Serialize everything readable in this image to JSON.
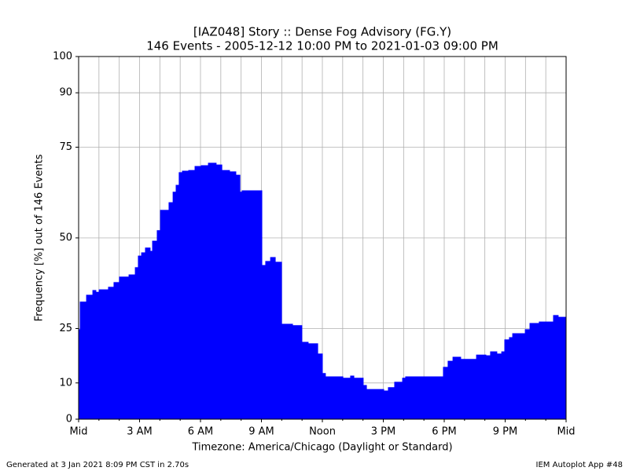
{
  "chart_data": {
    "type": "area",
    "title": "[IAZ048] Story :: Dense Fog Advisory (FG.Y)",
    "subtitle": "146 Events - 2005-12-12 10:00 PM to 2021-01-03 09:00 PM",
    "xlabel": "Timezone: America/Chicago (Daylight or Standard)",
    "ylabel": "Frequency [%] out of 146 Events",
    "footer_left": "Generated at 3 Jan 2021 8:09 PM CST in 2.70s",
    "footer_right": "IEM Autoplot App #48",
    "step": true,
    "color": "#0000ff",
    "grid": true,
    "x": [
      0,
      0.08,
      0.39,
      0.7,
      0.85,
      1.01,
      1.47,
      1.74,
      2.01,
      2.48,
      2.79,
      2.94,
      3.1,
      3.29,
      3.52,
      3.64,
      3.87,
      4.03,
      4.45,
      4.65,
      4.8,
      4.95,
      5.11,
      5.42,
      5.73,
      6.04,
      6.39,
      6.77,
      7.05,
      7.43,
      7.74,
      7.94,
      8.05,
      9.02,
      9.21,
      9.45,
      9.68,
      9.99,
      10.53,
      10.99,
      11.3,
      11.77,
      12,
      12.15,
      13.01,
      13.39,
      13.55,
      14.01,
      14.17,
      15.02,
      15.25,
      15.56,
      15.95,
      16.1,
      17.96,
      18.19,
      18.43,
      18.81,
      19.59,
      20.05,
      20.28,
      20.59,
      20.83,
      20.98,
      21.21,
      21.37,
      21.99,
      22.22,
      22.68,
      23.38,
      23.61,
      24
    ],
    "values": [
      24.7,
      32.3,
      34.2,
      35.5,
      35,
      35.7,
      36.4,
      37.7,
      39.2,
      39.8,
      41.8,
      45,
      45.9,
      47.2,
      46.3,
      49.1,
      52,
      57.6,
      59.7,
      62.6,
      64.5,
      68,
      68.4,
      68.6,
      69.7,
      69.9,
      70.6,
      70.1,
      68.6,
      68.2,
      67.3,
      62.6,
      63,
      42.4,
      43.5,
      44.6,
      43.3,
      26.2,
      25.8,
      21.2,
      20.8,
      18,
      12.6,
      11.7,
      11.3,
      11.9,
      11.3,
      9.3,
      8.2,
      7.8,
      8.7,
      10.2,
      11.3,
      11.7,
      14.3,
      16,
      17.1,
      16.5,
      17.7,
      17.5,
      18.6,
      18,
      18.6,
      21.9,
      22.5,
      23.6,
      24.7,
      26.4,
      26.8,
      28.6,
      28.1,
      28.1
    ],
    "xlim": [
      0,
      24
    ],
    "xticks": [
      {
        "value": 0,
        "label": "Mid"
      },
      {
        "value": 3,
        "label": "3 AM"
      },
      {
        "value": 6,
        "label": "6 AM"
      },
      {
        "value": 9,
        "label": "9 AM"
      },
      {
        "value": 12,
        "label": "Noon"
      },
      {
        "value": 15,
        "label": "3 PM"
      },
      {
        "value": 18,
        "label": "6 PM"
      },
      {
        "value": 21,
        "label": "9 PM"
      },
      {
        "value": 24,
        "label": "Mid"
      }
    ],
    "xminorticks": [
      1,
      2,
      4,
      5,
      7,
      8,
      10,
      11,
      13,
      14,
      16,
      17,
      19,
      20,
      22,
      23
    ],
    "ylim": [
      0,
      100
    ],
    "yticks": [
      0,
      10,
      25,
      50,
      75,
      90,
      100
    ]
  }
}
